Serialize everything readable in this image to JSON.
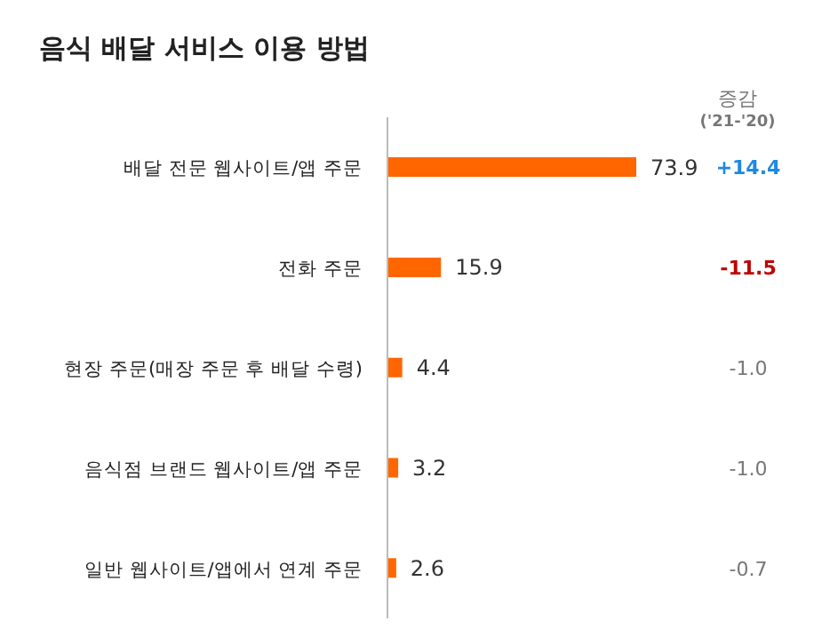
{
  "chart_data": {
    "type": "bar",
    "orientation": "horizontal",
    "title": "음식 배달 서비스 이용 방법",
    "categories": [
      "배달 전문 웹사이트/앱 주문",
      "전화 주문",
      "현장 주문(매장 주문 후 배달 수령)",
      "음식점 브랜드 웹사이트/앱 주문",
      "일반 웹사이트/앱에서 연계 주문"
    ],
    "values": [
      73.9,
      15.9,
      4.4,
      3.2,
      2.6
    ],
    "color": "#ff6600",
    "data_labels": true,
    "grid": false,
    "legend": false,
    "annotations": [
      "증감",
      "('21-'20)",
      "+14.4",
      "-11.5",
      "-1.0",
      "-1.0",
      "-0.7"
    ]
  }
}
